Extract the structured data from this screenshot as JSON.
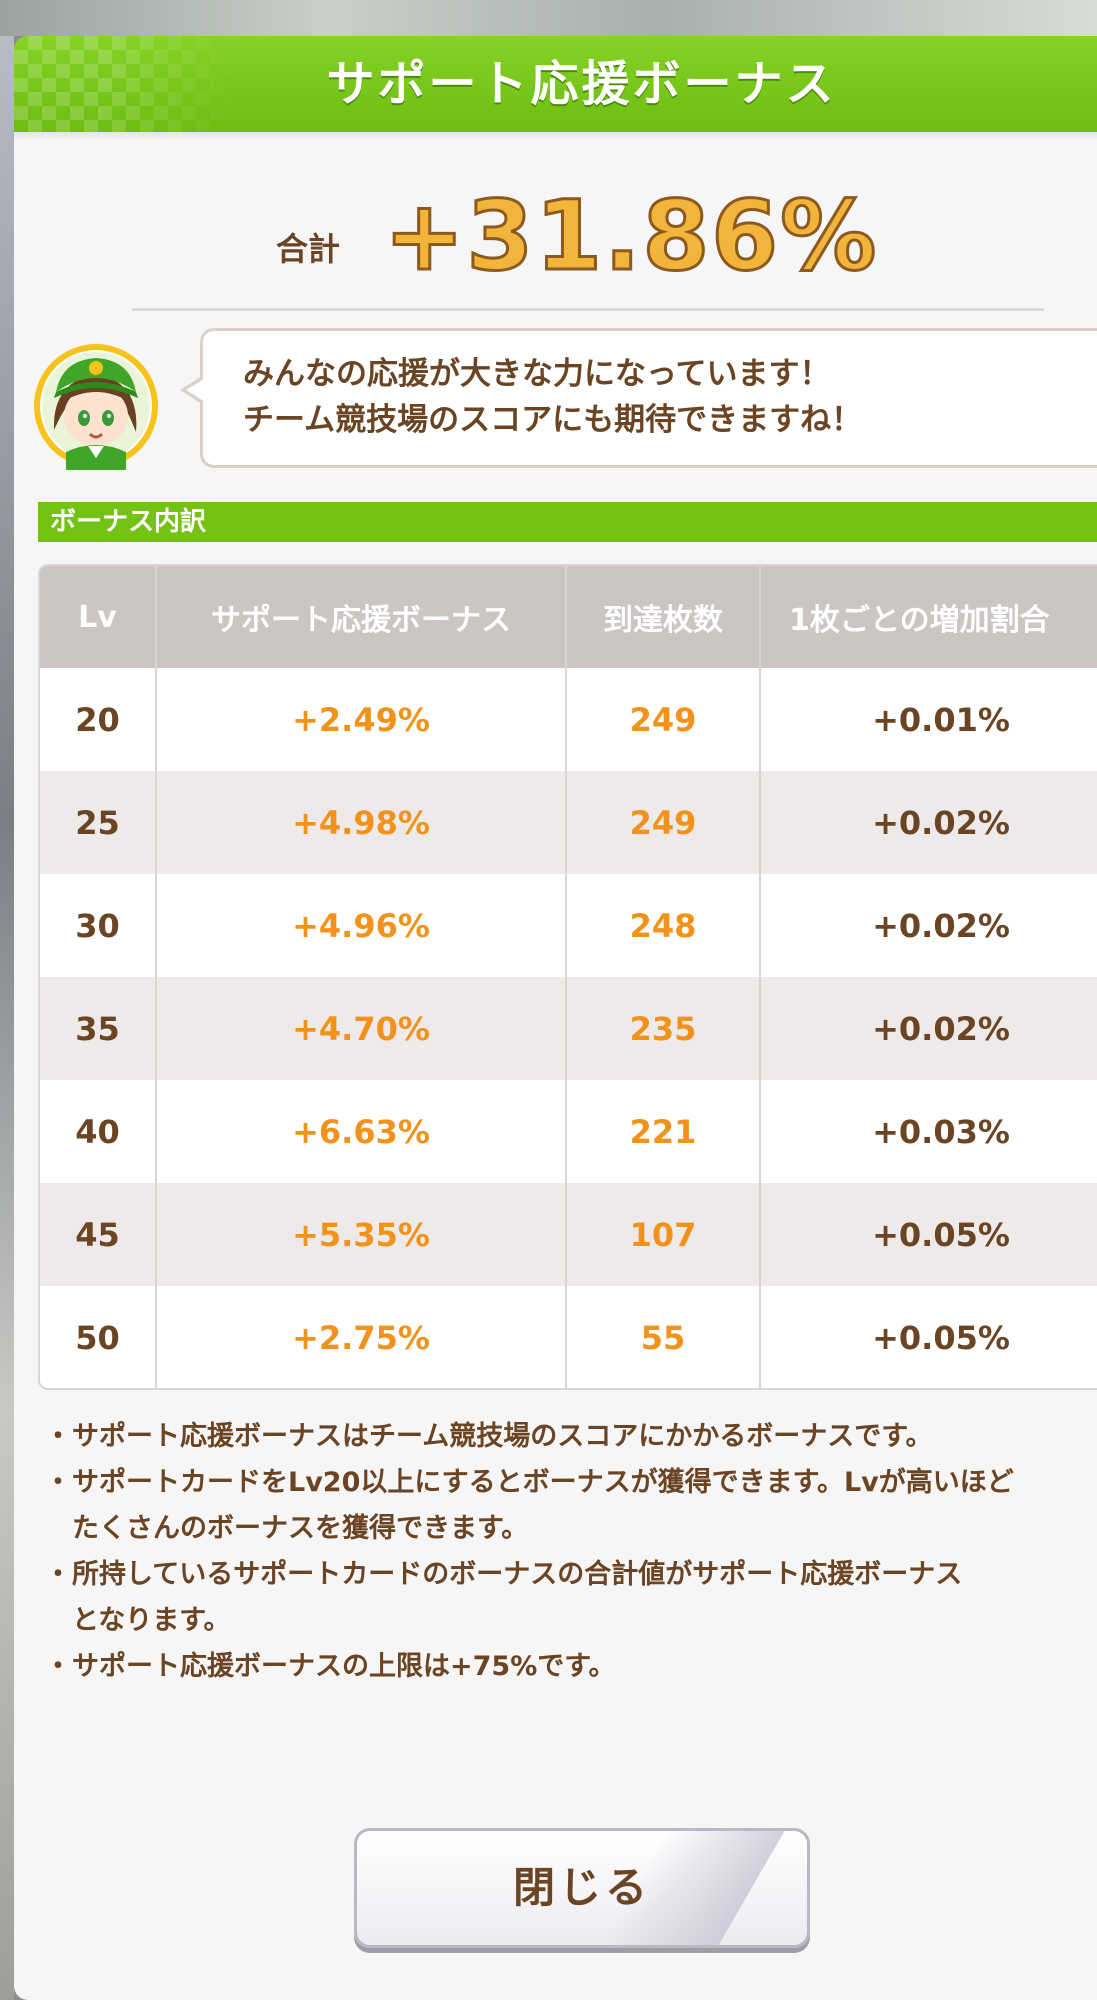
{
  "header": {
    "title": "サポート応援ボーナス"
  },
  "total": {
    "label": "合計",
    "value": "+31.86%"
  },
  "speech": {
    "lines": [
      "みんなの応援が大きな力になっています！",
      "チーム競技場のスコアにも期待できますね！"
    ]
  },
  "section": {
    "title": "ボーナス内訳"
  },
  "table": {
    "headers": [
      "Lv",
      "サポート応援ボーナス",
      "到達枚数",
      "1枚ごとの増加割合"
    ],
    "rows": [
      {
        "lv": "20",
        "bonus": "+2.49%",
        "count": "249",
        "rate": "+0.01%"
      },
      {
        "lv": "25",
        "bonus": "+4.98%",
        "count": "249",
        "rate": "+0.02%"
      },
      {
        "lv": "30",
        "bonus": "+4.96%",
        "count": "248",
        "rate": "+0.02%"
      },
      {
        "lv": "35",
        "bonus": "+4.70%",
        "count": "235",
        "rate": "+0.02%"
      },
      {
        "lv": "40",
        "bonus": "+6.63%",
        "count": "221",
        "rate": "+0.03%"
      },
      {
        "lv": "45",
        "bonus": "+5.35%",
        "count": "107",
        "rate": "+0.05%"
      },
      {
        "lv": "50",
        "bonus": "+2.75%",
        "count": "55",
        "rate": "+0.05%"
      }
    ]
  },
  "notes": {
    "bullet": "・",
    "items": [
      "サポート応援ボーナスはチーム競技場のスコアにかかるボーナスです。",
      "サポートカードをLv20以上にするとボーナスが獲得できます。Lvが高いほど\nたくさんのボーナスを獲得できます。",
      "所持しているサポートカードのボーナスの合計値がサポート応援ボーナス\nとなります。",
      "サポート応援ボーナスの上限は+75%です。"
    ]
  },
  "close_button": {
    "label": "閉じる"
  },
  "colors": {
    "header_green": "#7cc81a",
    "brown_text": "#6b4423",
    "orange_value": "#f2921a",
    "gold_total": "#f2b43a"
  },
  "icons": {
    "avatar": "character-avatar-icon"
  }
}
